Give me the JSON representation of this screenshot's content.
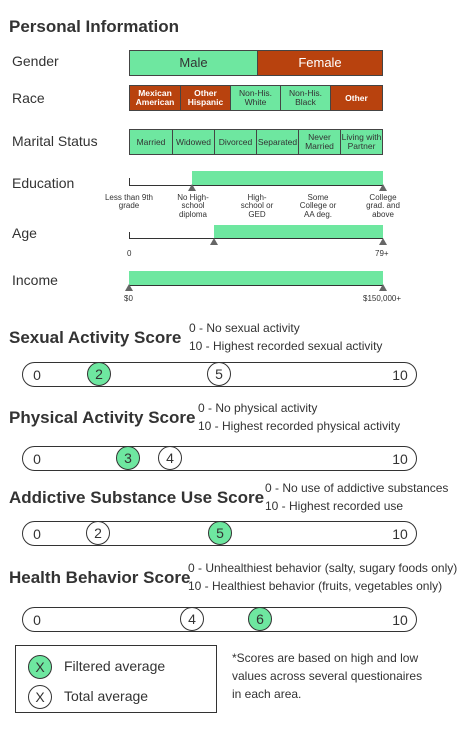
{
  "title": "Personal Information",
  "gender": {
    "label": "Gender",
    "options": [
      "Male",
      "Female"
    ],
    "highlighted": "Male"
  },
  "race": {
    "label": "Race",
    "options": [
      "Mexican American",
      "Other Hispanic",
      "Non-His. White",
      "Non-His. Black",
      "Other"
    ]
  },
  "marital": {
    "label": "Marital Status",
    "options": [
      "Married",
      "Widowed",
      "Divorced",
      "Separated",
      "Never Married",
      "Living with Partner"
    ]
  },
  "education": {
    "label": "Education",
    "ticks": [
      "Less than 9th grade",
      "No High-school diploma",
      "High-school or GED",
      "Some College or AA deg.",
      "College grad. and above"
    ]
  },
  "age": {
    "label": "Age",
    "min_label": "0",
    "max_label": "79+"
  },
  "income": {
    "label": "Income",
    "min_label": "$0",
    "max_label": "$150,000+"
  },
  "scores": [
    {
      "title": "Sexual Activity Score",
      "low_desc": "0 - No sexual activity",
      "high_desc": "10 - Highest recorded sexual activity",
      "min": "0",
      "max": "10",
      "filtered": "2",
      "total": "5"
    },
    {
      "title": "Physical Activity Score",
      "low_desc": "0 - No physical activity",
      "high_desc": "10 - Highest recorded physical activity",
      "min": "0",
      "max": "10",
      "filtered": "3",
      "total": "4"
    },
    {
      "title": "Addictive Substance Use Score",
      "low_desc": "0 - No use of addictive substances",
      "high_desc": "10 - Highest recorded use",
      "min": "0",
      "max": "10",
      "filtered": "5",
      "total": "2"
    },
    {
      "title": "Health Behavior Score",
      "low_desc": "0 - Unhealthiest behavior (salty, sugary foods only)",
      "high_desc": "10 - Healthiest behavior (fruits, vegetables only)",
      "min": "0",
      "max": "10",
      "filtered": "6",
      "total": "4"
    }
  ],
  "legend": {
    "filtered_symbol": "X",
    "filtered_label": "Filtered average",
    "total_symbol": "X",
    "total_label": "Total average"
  },
  "footnote": [
    "*Scores are based on high and low",
    "values across several questionaires",
    "in each area."
  ],
  "colors": {
    "green": "#6ee7a0",
    "rust": "#b8420e"
  }
}
